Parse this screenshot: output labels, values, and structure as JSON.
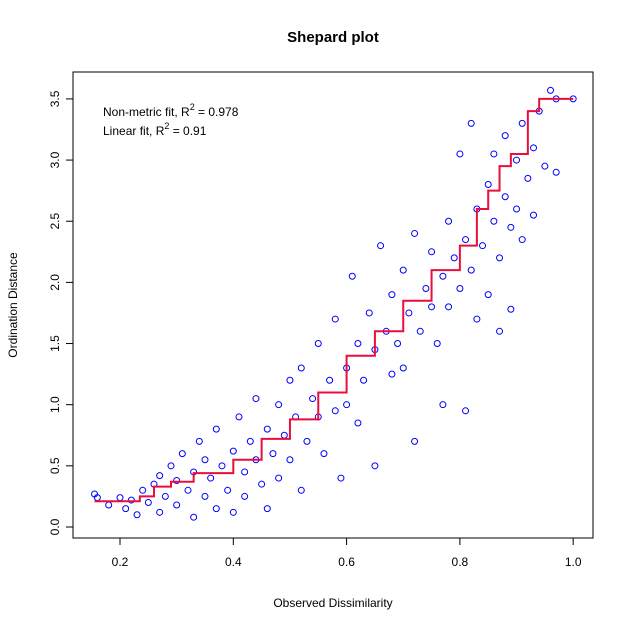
{
  "chart_data": {
    "type": "scatter",
    "title": "Shepard plot",
    "xlabel": "Observed Dissimilarity",
    "ylabel": "Ordination Distance",
    "annotations": [
      {
        "prefix": "Non-metric fit, R",
        "sup": "2",
        "suffix": " = 0.978"
      },
      {
        "prefix": "Linear fit, R",
        "sup": "2",
        "suffix": " = 0.91"
      }
    ],
    "xlim": [
      0.117,
      1.035
    ],
    "ylim": [
      -0.09,
      3.72
    ],
    "xticks": [
      0.2,
      0.4,
      0.6,
      0.8,
      {
        "value": 1,
        "label": "1.0"
      }
    ],
    "yticks": [
      {
        "value": 0,
        "label": "0.0"
      },
      0.5,
      {
        "value": 1,
        "label": "1.0"
      },
      1.5,
      {
        "value": 2,
        "label": "2.0"
      },
      2.5,
      {
        "value": 3,
        "label": "3.0"
      },
      3.5
    ],
    "points": {
      "color": "#0000ff",
      "x": [
        0.155,
        0.16,
        0.18,
        0.2,
        0.21,
        0.22,
        0.23,
        0.24,
        0.25,
        0.26,
        0.27,
        0.27,
        0.28,
        0.29,
        0.3,
        0.3,
        0.31,
        0.32,
        0.33,
        0.33,
        0.34,
        0.35,
        0.35,
        0.36,
        0.37,
        0.37,
        0.38,
        0.39,
        0.4,
        0.4,
        0.41,
        0.42,
        0.42,
        0.43,
        0.44,
        0.44,
        0.45,
        0.46,
        0.46,
        0.47,
        0.48,
        0.48,
        0.49,
        0.5,
        0.5,
        0.51,
        0.52,
        0.52,
        0.53,
        0.54,
        0.55,
        0.55,
        0.56,
        0.57,
        0.58,
        0.58,
        0.59,
        0.6,
        0.6,
        0.61,
        0.62,
        0.62,
        0.63,
        0.64,
        0.65,
        0.65,
        0.66,
        0.67,
        0.68,
        0.68,
        0.69,
        0.7,
        0.7,
        0.71,
        0.72,
        0.72,
        0.73,
        0.74,
        0.75,
        0.75,
        0.76,
        0.77,
        0.77,
        0.78,
        0.78,
        0.79,
        0.8,
        0.8,
        0.81,
        0.81,
        0.82,
        0.82,
        0.83,
        0.83,
        0.84,
        0.85,
        0.85,
        0.86,
        0.86,
        0.87,
        0.87,
        0.88,
        0.88,
        0.89,
        0.89,
        0.9,
        0.9,
        0.91,
        0.91,
        0.92,
        0.93,
        0.93,
        0.94,
        0.95,
        0.96,
        0.97,
        0.97,
        1.0
      ],
      "y": [
        0.27,
        0.24,
        0.18,
        0.24,
        0.15,
        0.22,
        0.1,
        0.3,
        0.2,
        0.35,
        0.12,
        0.42,
        0.25,
        0.5,
        0.18,
        0.38,
        0.6,
        0.3,
        0.08,
        0.45,
        0.7,
        0.25,
        0.55,
        0.4,
        0.15,
        0.8,
        0.5,
        0.3,
        0.62,
        0.12,
        0.9,
        0.45,
        0.25,
        0.7,
        0.55,
        1.05,
        0.35,
        0.8,
        0.15,
        0.6,
        1.0,
        0.4,
        0.75,
        1.2,
        0.55,
        0.9,
        0.3,
        1.3,
        0.7,
        1.05,
        0.9,
        1.5,
        0.6,
        1.2,
        0.95,
        1.7,
        0.4,
        1.3,
        1.0,
        2.05,
        1.5,
        0.85,
        1.2,
        1.75,
        1.45,
        0.5,
        2.3,
        1.6,
        1.25,
        1.9,
        1.5,
        2.1,
        1.3,
        1.75,
        0.7,
        2.4,
        1.6,
        1.95,
        1.8,
        2.25,
        1.5,
        2.05,
        1.0,
        2.5,
        1.8,
        2.2,
        1.95,
        3.05,
        2.35,
        0.95,
        3.3,
        2.1,
        2.6,
        1.7,
        2.3,
        2.8,
        1.9,
        2.5,
        3.05,
        2.2,
        1.6,
        2.7,
        3.2,
        2.45,
        1.78,
        3.0,
        2.6,
        3.3,
        2.35,
        2.85,
        3.1,
        2.55,
        3.4,
        2.95,
        3.57,
        2.9,
        3.5,
        3.5
      ]
    },
    "fit_line": {
      "color": "#e8103a",
      "x": [
        0.155,
        0.235,
        0.235,
        0.26,
        0.26,
        0.29,
        0.29,
        0.33,
        0.33,
        0.4,
        0.4,
        0.45,
        0.45,
        0.5,
        0.5,
        0.55,
        0.55,
        0.6,
        0.6,
        0.65,
        0.65,
        0.7,
        0.7,
        0.75,
        0.75,
        0.8,
        0.8,
        0.83,
        0.83,
        0.85,
        0.85,
        0.87,
        0.87,
        0.89,
        0.89,
        0.92,
        0.92,
        0.94,
        0.94,
        0.96,
        0.96,
        1.0
      ],
      "y": [
        0.21,
        0.21,
        0.25,
        0.25,
        0.33,
        0.33,
        0.37,
        0.37,
        0.44,
        0.44,
        0.55,
        0.55,
        0.72,
        0.72,
        0.88,
        0.88,
        1.1,
        1.1,
        1.4,
        1.4,
        1.6,
        1.6,
        1.85,
        1.85,
        2.1,
        2.1,
        2.3,
        2.3,
        2.6,
        2.6,
        2.75,
        2.75,
        2.95,
        2.95,
        3.05,
        3.05,
        3.4,
        3.4,
        3.5,
        3.5,
        3.5,
        3.5
      ]
    }
  }
}
